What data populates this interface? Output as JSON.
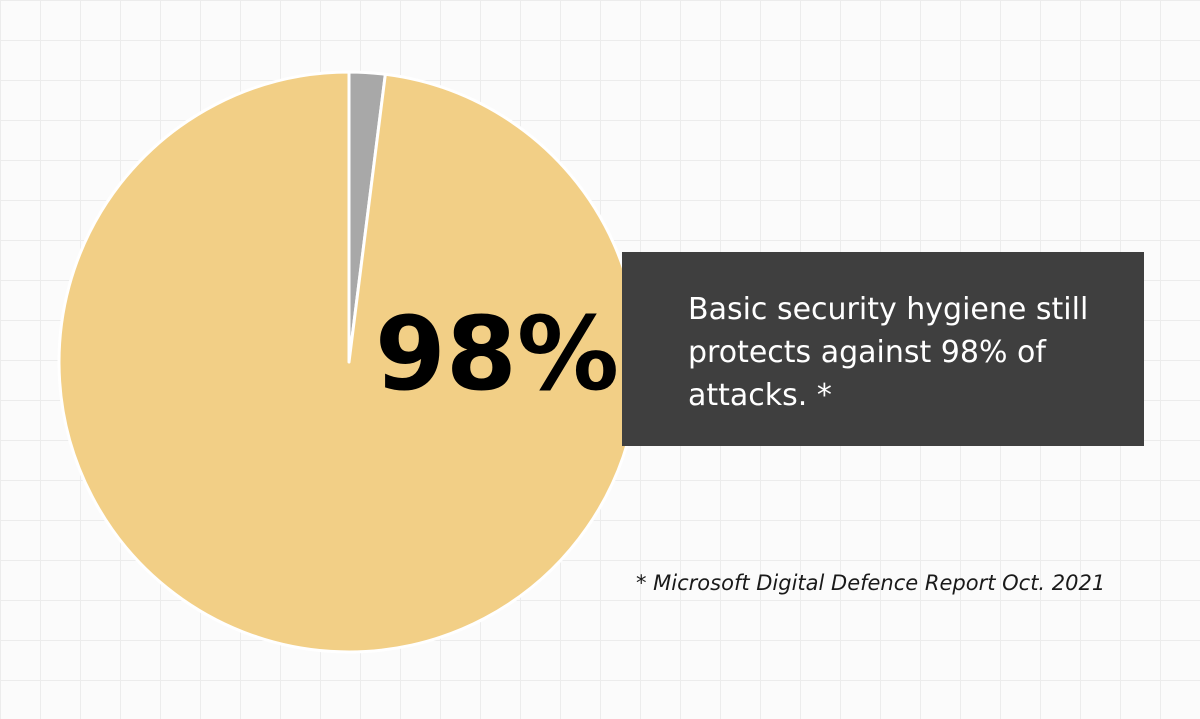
{
  "chart_data": {
    "type": "pie",
    "slices": [
      {
        "value": 98,
        "color": "#f2cf86"
      },
      {
        "value": 2,
        "color": "#a8a8a8"
      }
    ],
    "data_label": "98%"
  },
  "callout": {
    "text": "Basic security hygiene still protects against 98% of attacks. *"
  },
  "footnote": {
    "text": "* Microsoft Digital Defence Report Oct. 2021"
  },
  "colors": {
    "background": "#fbfbfb",
    "grid": "#ececec",
    "callout_bg": "#3f3f3f",
    "callout_text": "#ffffff",
    "label_text": "#000000",
    "slice_border": "#ffffff"
  }
}
